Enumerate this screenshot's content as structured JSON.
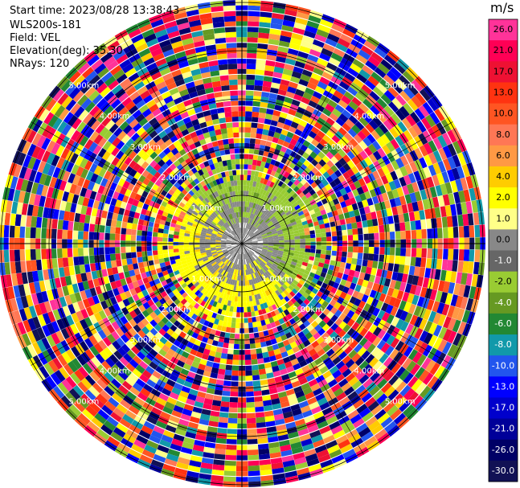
{
  "header": {
    "start_time": "Start time: 2023/08/28 13:38:43",
    "instrument": "WLS200s-181",
    "field": "Field: VEL",
    "elevation": "Elevation(deg): 35.30",
    "nrays": "NRays: 120"
  },
  "chart_data": {
    "type": "heatmap",
    "projection": "polar-ppi",
    "n_rays": 120,
    "elevation_deg": 35.3,
    "field": "VEL",
    "unit_label": "m/s",
    "range_ring_labels": [
      "1.00km",
      "2.00km",
      "3.00km",
      "4.00km",
      "5.00km"
    ],
    "colorbar": {
      "levels": [
        {
          "value": "26.0",
          "color": "#ff3399"
        },
        {
          "value": "21.0",
          "color": "#ff0055"
        },
        {
          "value": "17.0",
          "color": "#ee1133"
        },
        {
          "value": "13.0",
          "color": "#ff3311"
        },
        {
          "value": "10.0",
          "color": "#ff5522"
        },
        {
          "value": "8.0",
          "color": "#ff7755"
        },
        {
          "value": "6.0",
          "color": "#ff9944"
        },
        {
          "value": "4.0",
          "color": "#ffcc00"
        },
        {
          "value": "2.0",
          "color": "#ffff00"
        },
        {
          "value": "1.0",
          "color": "#ffff88"
        },
        {
          "value": "0.0",
          "color": "#888888"
        },
        {
          "value": "-1.0",
          "color": "#666666"
        },
        {
          "value": "-2.0",
          "color": "#99cc33"
        },
        {
          "value": "-4.0",
          "color": "#669922"
        },
        {
          "value": "-6.0",
          "color": "#228833"
        },
        {
          "value": "-8.0",
          "color": "#1199aa"
        },
        {
          "value": "-10.0",
          "color": "#2255ee"
        },
        {
          "value": "-13.0",
          "color": "#0000ff"
        },
        {
          "value": "-17.0",
          "color": "#0000cc"
        },
        {
          "value": "-21.0",
          "color": "#000099"
        },
        {
          "value": "-26.0",
          "color": "#000066"
        },
        {
          "value": "-30.0",
          "color": "#111155"
        }
      ]
    },
    "near_field_pattern": {
      "description_colors": {
        "north_west": "#ffff00",
        "south_east": "#99cc33",
        "center": "#888888"
      }
    }
  }
}
